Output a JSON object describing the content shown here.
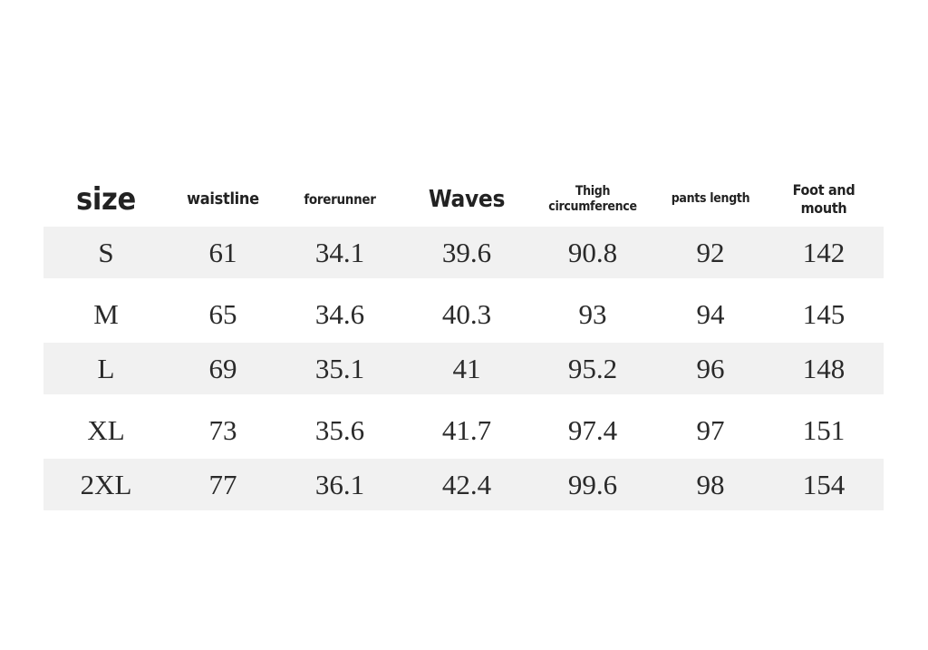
{
  "table": {
    "header": [
      "size",
      "waistline",
      "forerunner",
      "Waves",
      "Thigh circumference",
      "pants length",
      "Foot and mouth"
    ],
    "rows": [
      [
        "S",
        "61",
        "34.1",
        "39.6",
        "90.8",
        "92",
        "142"
      ],
      [
        "M",
        "65",
        "34.6",
        "40.3",
        "93",
        "94",
        "145"
      ],
      [
        "L",
        "69",
        "35.1",
        "41",
        "95.2",
        "96",
        "148"
      ],
      [
        "XL",
        "73",
        "35.6",
        "41.7",
        "97.4",
        "97",
        "151"
      ],
      [
        "2XL",
        "77",
        "36.1",
        "42.4",
        "99.6",
        "98",
        "154"
      ]
    ]
  }
}
